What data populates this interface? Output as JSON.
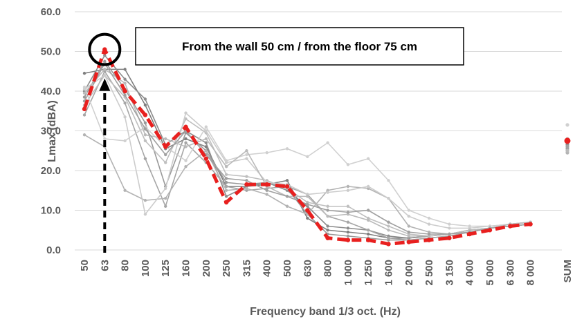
{
  "chart_data": {
    "type": "line",
    "title": "",
    "xlabel": "Frequency band 1/3 oct. (Hz)",
    "ylabel": "Lmax (dBA)",
    "ylim": [
      0,
      60
    ],
    "yticks": [
      "0.0",
      "10.0",
      "20.0",
      "30.0",
      "40.0",
      "50.0",
      "60.0"
    ],
    "grid": true,
    "categories": [
      "50",
      "63",
      "80",
      "100",
      "125",
      "160",
      "200",
      "250",
      "315",
      "400",
      "500",
      "630",
      "800",
      "1 000",
      "1 250",
      "1 600",
      "2 000",
      "2 500",
      "3 150",
      "4 000",
      "5 000",
      "6 300",
      "8 000"
    ],
    "sum_label": "SUM",
    "annotation": "From the wall 50 cm / from the floor 75 cm",
    "highlight_category": "63",
    "colors": {
      "highlight": "#e8201f",
      "grid": "#d9d9d9",
      "series": [
        "#7f7f7f",
        "#8c8c8c",
        "#999999",
        "#a6a6a6",
        "#b3b3b3",
        "#bfbfbf",
        "#cccccc",
        "#d0d0d0",
        "#bababa",
        "#a0a0a0"
      ]
    },
    "highlight_series": {
      "values": [
        35.5,
        50.5,
        40.0,
        34.0,
        26.0,
        31.0,
        23.0,
        12.0,
        16.5,
        16.5,
        16.0,
        10.0,
        3.0,
        2.5,
        2.5,
        1.5,
        2.0,
        2.5,
        3.0,
        4.0,
        5.0,
        6.0,
        6.5
      ],
      "sum": 27.5
    },
    "series": [
      {
        "values": [
          44.5,
          45.5,
          45.5,
          36.5,
          25.5,
          28.0,
          26.0,
          16.0,
          16.0,
          16.5,
          17.5,
          8.0,
          5.0,
          4.5,
          4.0,
          3.0,
          3.0,
          3.5,
          4.0,
          5.0,
          5.5,
          6.0,
          6.5
        ],
        "sum": 27.0
      },
      {
        "values": [
          40.0,
          49.0,
          43.0,
          38.0,
          26.5,
          30.0,
          27.0,
          13.5,
          16.0,
          17.0,
          15.0,
          11.0,
          6.0,
          5.5,
          5.0,
          3.5,
          3.0,
          3.5,
          4.0,
          5.0,
          5.5,
          6.5,
          7.0
        ],
        "sum": 26.5
      },
      {
        "values": [
          38.5,
          47.5,
          40.5,
          32.0,
          16.0,
          29.5,
          25.0,
          17.0,
          16.5,
          17.0,
          15.5,
          9.0,
          4.0,
          3.5,
          3.0,
          2.5,
          2.5,
          3.0,
          3.5,
          4.5,
          5.5,
          6.0,
          6.5
        ],
        "sum": 25.5
      },
      {
        "values": [
          34.0,
          45.0,
          37.0,
          23.0,
          11.0,
          27.0,
          22.0,
          16.0,
          15.0,
          15.5,
          16.0,
          14.0,
          8.5,
          7.0,
          5.0,
          3.0,
          2.5,
          3.0,
          3.5,
          4.5,
          5.5,
          6.0,
          6.5
        ],
        "sum": 25.0
      },
      {
        "values": [
          29.0,
          26.0,
          15.0,
          12.5,
          13.0,
          21.0,
          25.0,
          15.0,
          15.5,
          14.0,
          11.0,
          9.0,
          15.0,
          16.0,
          15.5,
          13.0,
          6.0,
          4.5,
          4.0,
          4.5,
          5.5,
          6.0,
          6.5
        ],
        "sum": 24.5
      },
      {
        "values": [
          36.5,
          44.0,
          38.5,
          27.5,
          22.0,
          33.0,
          29.5,
          19.0,
          18.5,
          17.5,
          15.5,
          12.0,
          11.0,
          11.0,
          8.0,
          6.0,
          4.0,
          3.5,
          4.0,
          5.0,
          5.5,
          6.5,
          7.0
        ],
        "sum": 26.0
      },
      {
        "values": [
          40.5,
          44.0,
          33.5,
          9.0,
          15.5,
          34.5,
          30.0,
          22.0,
          23.0,
          17.0,
          16.5,
          14.0,
          14.5,
          15.0,
          16.0,
          13.0,
          8.5,
          6.5,
          5.5,
          5.5,
          6.0,
          6.5,
          7.0
        ],
        "sum": 28.0
      },
      {
        "values": [
          41.0,
          28.0,
          27.5,
          31.0,
          26.0,
          22.5,
          31.0,
          22.5,
          24.0,
          24.5,
          25.5,
          23.5,
          27.0,
          21.5,
          23.0,
          17.5,
          10.0,
          8.0,
          6.5,
          6.0,
          6.0,
          6.5,
          7.0
        ],
        "sum": 31.5
      },
      {
        "values": [
          39.5,
          45.5,
          42.0,
          29.0,
          28.0,
          26.0,
          28.0,
          21.0,
          25.0,
          16.0,
          13.5,
          13.5,
          8.5,
          9.0,
          7.5,
          5.0,
          3.5,
          3.5,
          4.0,
          5.0,
          5.5,
          6.5,
          7.0
        ],
        "sum": 25.0
      },
      {
        "values": [
          37.5,
          47.0,
          39.0,
          30.5,
          24.0,
          30.0,
          24.0,
          18.0,
          17.5,
          15.0,
          13.5,
          11.5,
          10.0,
          9.5,
          10.0,
          7.0,
          4.5,
          4.0,
          4.0,
          4.5,
          5.5,
          6.0,
          6.5
        ],
        "sum": 26.0
      }
    ]
  }
}
